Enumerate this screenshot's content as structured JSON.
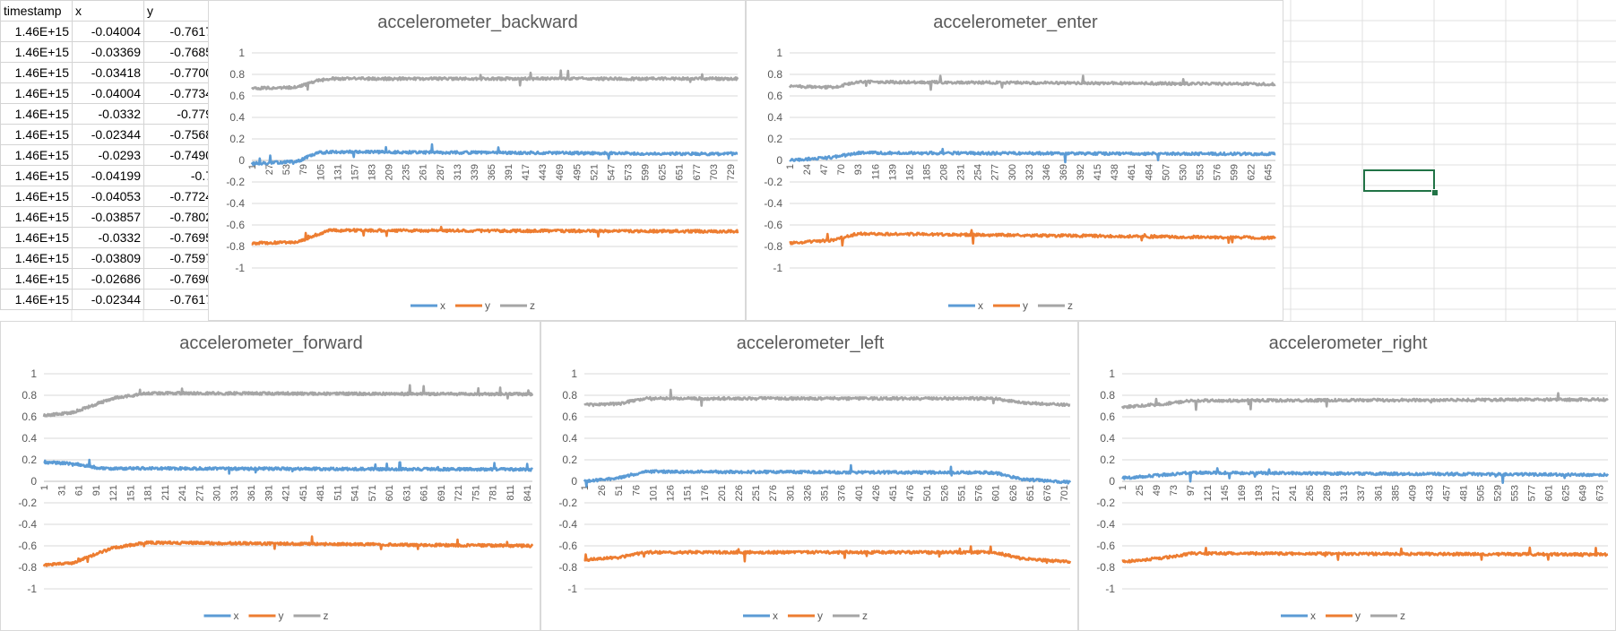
{
  "spreadsheet": {
    "headers": [
      "timestamp",
      "x",
      "y"
    ],
    "rows": [
      [
        "1.46E+15",
        "-0.04004",
        "-0.7617"
      ],
      [
        "1.46E+15",
        "-0.03369",
        "-0.7685"
      ],
      [
        "1.46E+15",
        "-0.03418",
        "-0.7700"
      ],
      [
        "1.46E+15",
        "-0.04004",
        "-0.7734"
      ],
      [
        "1.46E+15",
        "-0.0332",
        "-0.779"
      ],
      [
        "1.46E+15",
        "-0.02344",
        "-0.7568"
      ],
      [
        "1.46E+15",
        "-0.0293",
        "-0.7490"
      ],
      [
        "1.46E+15",
        "-0.04199",
        "-0.7"
      ],
      [
        "1.46E+15",
        "-0.04053",
        "-0.7724"
      ],
      [
        "1.46E+15",
        "-0.03857",
        "-0.7802"
      ],
      [
        "1.46E+15",
        "-0.0332",
        "-0.7695"
      ],
      [
        "1.46E+15",
        "-0.03809",
        "-0.7597"
      ],
      [
        "1.46E+15",
        "-0.02686",
        "-0.7690"
      ],
      [
        "1.46E+15",
        "-0.02344",
        "-0.7617"
      ]
    ]
  },
  "colors": {
    "x": "#5b9bd5",
    "y": "#ed7d31",
    "z": "#a5a5a5",
    "grid": "#d9d9d9",
    "selection": "#217346"
  },
  "chart_data": [
    {
      "type": "line",
      "title": "accelerometer_backward",
      "n_points": 740,
      "xticks": [
        "1",
        "27",
        "53",
        "79",
        "105",
        "131",
        "157",
        "183",
        "209",
        "235",
        "261",
        "287",
        "313",
        "339",
        "365",
        "391",
        "417",
        "443",
        "469",
        "495",
        "521",
        "547",
        "573",
        "599",
        "625",
        "651",
        "677",
        "703",
        "729"
      ],
      "ylim": [
        -1,
        1
      ],
      "yticks": [
        "1",
        "0.8",
        "0.6",
        "0.4",
        "0.2",
        "0",
        "-0.2",
        "-0.4",
        "-0.6",
        "-0.8",
        "-1"
      ],
      "legend": "bottom",
      "series": [
        {
          "name": "x",
          "profile": [
            [
              1,
              -0.03
            ],
            [
              70,
              -0.01
            ],
            [
              100,
              0.07
            ],
            [
              120,
              0.08
            ],
            [
              740,
              0.06
            ]
          ]
        },
        {
          "name": "y",
          "profile": [
            [
              1,
              -0.77
            ],
            [
              70,
              -0.76
            ],
            [
              100,
              -0.69
            ],
            [
              120,
              -0.65
            ],
            [
              740,
              -0.66
            ]
          ]
        },
        {
          "name": "z",
          "profile": [
            [
              1,
              0.67
            ],
            [
              70,
              0.68
            ],
            [
              100,
              0.74
            ],
            [
              120,
              0.76
            ],
            [
              740,
              0.76
            ]
          ]
        }
      ]
    },
    {
      "type": "line",
      "title": "accelerometer_enter",
      "n_points": 655,
      "xticks": [
        "1",
        "24",
        "47",
        "70",
        "93",
        "116",
        "139",
        "162",
        "185",
        "208",
        "231",
        "254",
        "277",
        "300",
        "323",
        "346",
        "369",
        "392",
        "415",
        "438",
        "461",
        "484",
        "507",
        "530",
        "553",
        "576",
        "599",
        "622",
        "645"
      ],
      "ylim": [
        -1,
        1
      ],
      "yticks": [
        "1",
        "0.8",
        "0.6",
        "0.4",
        "0.2",
        "0",
        "-0.2",
        "-0.4",
        "-0.6",
        "-0.8",
        "-1"
      ],
      "legend": "bottom",
      "series": [
        {
          "name": "x",
          "profile": [
            [
              1,
              0.0
            ],
            [
              60,
              0.03
            ],
            [
              93,
              0.07
            ],
            [
              655,
              0.06
            ]
          ]
        },
        {
          "name": "y",
          "profile": [
            [
              1,
              -0.77
            ],
            [
              60,
              -0.74
            ],
            [
              93,
              -0.68
            ],
            [
              655,
              -0.72
            ]
          ]
        },
        {
          "name": "z",
          "profile": [
            [
              1,
              0.69
            ],
            [
              60,
              0.68
            ],
            [
              93,
              0.73
            ],
            [
              655,
              0.71
            ]
          ]
        }
      ]
    },
    {
      "type": "line",
      "title": "accelerometer_forward",
      "n_points": 850,
      "xticks": [
        "1",
        "31",
        "61",
        "91",
        "121",
        "151",
        "181",
        "211",
        "241",
        "271",
        "301",
        "331",
        "361",
        "391",
        "421",
        "451",
        "481",
        "511",
        "541",
        "571",
        "601",
        "631",
        "661",
        "691",
        "721",
        "751",
        "781",
        "811",
        "841"
      ],
      "ylim": [
        -1,
        1
      ],
      "yticks": [
        "1",
        "0.8",
        "0.6",
        "0.4",
        "0.2",
        "0",
        "-0.2",
        "-0.4",
        "-0.6",
        "-0.8",
        "-1"
      ],
      "legend": "bottom",
      "series": [
        {
          "name": "x",
          "profile": [
            [
              1,
              0.18
            ],
            [
              60,
              0.16
            ],
            [
              100,
              0.12
            ],
            [
              200,
              0.12
            ],
            [
              850,
              0.11
            ]
          ]
        },
        {
          "name": "y",
          "profile": [
            [
              1,
              -0.78
            ],
            [
              50,
              -0.76
            ],
            [
              120,
              -0.62
            ],
            [
              180,
              -0.57
            ],
            [
              850,
              -0.6
            ]
          ]
        },
        {
          "name": "z",
          "profile": [
            [
              1,
              0.61
            ],
            [
              50,
              0.64
            ],
            [
              120,
              0.77
            ],
            [
              180,
              0.82
            ],
            [
              850,
              0.81
            ]
          ]
        }
      ]
    },
    {
      "type": "line",
      "title": "accelerometer_left",
      "n_points": 710,
      "xticks": [
        "1",
        "26",
        "51",
        "76",
        "101",
        "126",
        "151",
        "176",
        "201",
        "226",
        "251",
        "276",
        "301",
        "326",
        "351",
        "376",
        "401",
        "426",
        "451",
        "476",
        "501",
        "526",
        "551",
        "576",
        "601",
        "626",
        "651",
        "676",
        "701"
      ],
      "ylim": [
        -1,
        1
      ],
      "yticks": [
        "1",
        "0.8",
        "0.6",
        "0.4",
        "0.2",
        "0",
        "-0.2",
        "-0.4",
        "-0.6",
        "-0.8",
        "-1"
      ],
      "legend": "bottom",
      "series": [
        {
          "name": "x",
          "profile": [
            [
              1,
              0.0
            ],
            [
              50,
              0.03
            ],
            [
              90,
              0.09
            ],
            [
              600,
              0.08
            ],
            [
              640,
              0.02
            ],
            [
              710,
              -0.01
            ]
          ]
        },
        {
          "name": "y",
          "profile": [
            [
              1,
              -0.73
            ],
            [
              50,
              -0.71
            ],
            [
              90,
              -0.66
            ],
            [
              600,
              -0.66
            ],
            [
              640,
              -0.72
            ],
            [
              710,
              -0.75
            ]
          ]
        },
        {
          "name": "z",
          "profile": [
            [
              1,
              0.71
            ],
            [
              50,
              0.72
            ],
            [
              90,
              0.77
            ],
            [
              600,
              0.77
            ],
            [
              640,
              0.73
            ],
            [
              710,
              0.71
            ]
          ]
        }
      ]
    },
    {
      "type": "line",
      "title": "accelerometer_right",
      "n_points": 685,
      "xticks": [
        "1",
        "25",
        "49",
        "73",
        "97",
        "121",
        "145",
        "169",
        "193",
        "217",
        "241",
        "265",
        "289",
        "313",
        "337",
        "361",
        "385",
        "409",
        "433",
        "457",
        "481",
        "505",
        "529",
        "553",
        "577",
        "601",
        "625",
        "649",
        "673"
      ],
      "ylim": [
        -1,
        1
      ],
      "yticks": [
        "1",
        "0.8",
        "0.6",
        "0.4",
        "0.2",
        "0",
        "-0.2",
        "-0.4",
        "-0.6",
        "-0.8",
        "-1"
      ],
      "legend": "bottom",
      "series": [
        {
          "name": "x",
          "profile": [
            [
              1,
              0.03
            ],
            [
              60,
              0.06
            ],
            [
              100,
              0.08
            ],
            [
              685,
              0.06
            ]
          ]
        },
        {
          "name": "y",
          "profile": [
            [
              1,
              -0.75
            ],
            [
              60,
              -0.71
            ],
            [
              100,
              -0.67
            ],
            [
              685,
              -0.68
            ]
          ]
        },
        {
          "name": "z",
          "profile": [
            [
              1,
              0.69
            ],
            [
              60,
              0.72
            ],
            [
              100,
              0.75
            ],
            [
              685,
              0.76
            ]
          ]
        }
      ]
    }
  ]
}
